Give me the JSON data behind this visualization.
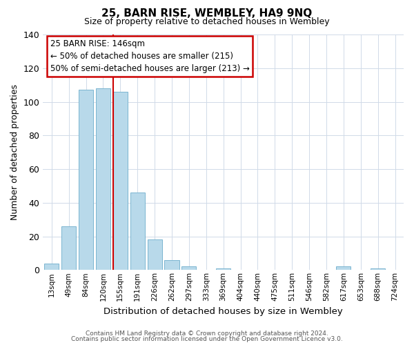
{
  "title": "25, BARN RISE, WEMBLEY, HA9 9NQ",
  "subtitle": "Size of property relative to detached houses in Wembley",
  "xlabel": "Distribution of detached houses by size in Wembley",
  "ylabel": "Number of detached properties",
  "bar_labels": [
    "13sqm",
    "49sqm",
    "84sqm",
    "120sqm",
    "155sqm",
    "191sqm",
    "226sqm",
    "262sqm",
    "297sqm",
    "333sqm",
    "369sqm",
    "404sqm",
    "440sqm",
    "475sqm",
    "511sqm",
    "546sqm",
    "582sqm",
    "617sqm",
    "653sqm",
    "688sqm",
    "724sqm"
  ],
  "bar_values": [
    4,
    26,
    107,
    108,
    106,
    46,
    18,
    6,
    2,
    0,
    1,
    0,
    0,
    0,
    0,
    0,
    0,
    2,
    0,
    1,
    0
  ],
  "bar_color": "#b8d9ea",
  "bar_edgecolor": "#7ab5d0",
  "ylim": [
    0,
    140
  ],
  "yticks": [
    0,
    20,
    40,
    60,
    80,
    100,
    120,
    140
  ],
  "property_line_color": "#cc0000",
  "annotation_title": "25 BARN RISE: 146sqm",
  "annotation_line1": "← 50% of detached houses are smaller (215)",
  "annotation_line2": "50% of semi-detached houses are larger (213) →",
  "annotation_box_color": "#cc0000",
  "footer_line1": "Contains HM Land Registry data © Crown copyright and database right 2024.",
  "footer_line2": "Contains public sector information licensed under the Open Government Licence v3.0.",
  "bg_color": "#ffffff",
  "grid_color": "#d0dae8"
}
